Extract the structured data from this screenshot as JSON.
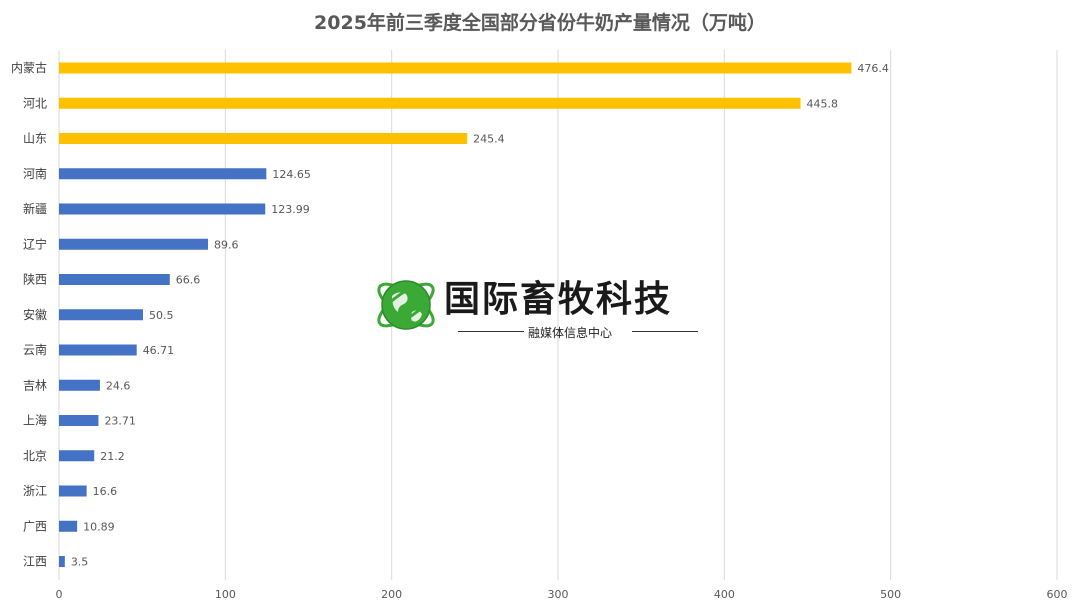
{
  "chart_data": {
    "type": "bar",
    "orientation": "horizontal",
    "title": "2025年前三季度全国部分省份牛奶产量情况（万吨）",
    "categories": [
      "内蒙古",
      "河北",
      "山东",
      "河南",
      "新疆",
      "辽宁",
      "陕西",
      "安徽",
      "云南",
      "吉林",
      "上海",
      "北京",
      "浙江",
      "广西",
      "江西"
    ],
    "values": [
      476.4,
      445.8,
      245.4,
      124.65,
      123.99,
      89.6,
      66.6,
      50.5,
      46.71,
      24.6,
      23.71,
      21.2,
      16.6,
      10.89,
      3.5
    ],
    "value_labels": [
      "476.4",
      "445.8",
      "245.4",
      "124.65",
      "123.99",
      "89.6",
      "66.6",
      "50.5",
      "46.71",
      "24.6",
      "23.71",
      "21.2",
      "16.6",
      "10.89",
      "3.5"
    ],
    "highlight_top_n": 3,
    "colors": {
      "highlight": "#FFC000",
      "normal": "#4472C4",
      "grid": "#D9D9D9"
    },
    "xlim": [
      0,
      600
    ],
    "x_ticks": [
      0,
      100,
      200,
      300,
      400,
      500,
      600
    ],
    "grid": true,
    "legend": "none"
  },
  "watermark": {
    "name": "国际畜牧科技",
    "subtitle": "融媒体信息中心",
    "icon": "globe-icon"
  }
}
